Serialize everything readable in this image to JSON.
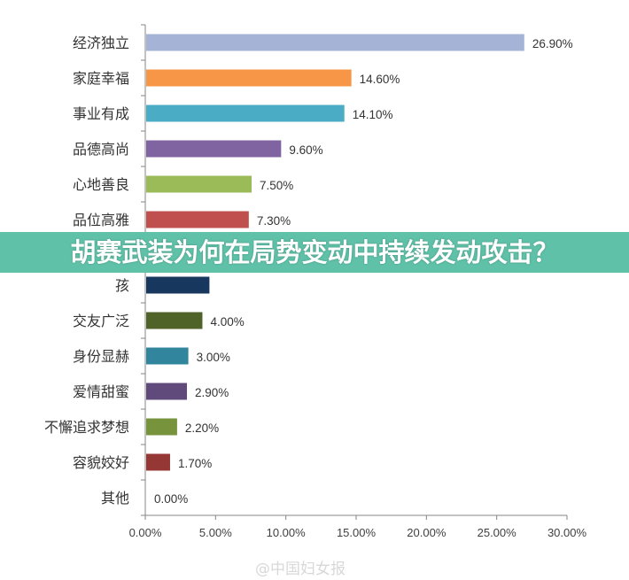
{
  "banner": {
    "title": "胡赛武装为何在局势变动中持续发动攻击？"
  },
  "watermark": "@中国妇女报",
  "chart_data": {
    "type": "bar",
    "orientation": "horizontal",
    "title": "",
    "xlabel": "",
    "ylabel": "",
    "xlim": [
      0,
      30
    ],
    "xticks": [
      "0.00%",
      "5.00%",
      "10.00%",
      "15.00%",
      "20.00%",
      "25.00%",
      "30.00%"
    ],
    "grid": false,
    "categories": [
      "经济独立",
      "家庭幸福",
      "事业有成",
      "品德高尚",
      "心地善良",
      "品位高雅",
      "孩",
      "交友广泛",
      "身份显赫",
      "爱情甜蜜",
      "不懈追求梦想",
      "容貌姣好",
      "其他"
    ],
    "values": [
      26.9,
      14.6,
      14.1,
      9.6,
      7.5,
      7.3,
      4.5,
      4.0,
      3.0,
      2.9,
      2.2,
      1.7,
      0.0
    ],
    "labels": [
      "26.90%",
      "14.60%",
      "14.10%",
      "9.60%",
      "7.50%",
      "7.30%",
      "",
      "4.00%",
      "3.00%",
      "2.90%",
      "2.20%",
      "1.70%",
      "0.00%"
    ],
    "colors": [
      "#a5b4d6",
      "#f79646",
      "#4bacc6",
      "#8064a2",
      "#9bbb59",
      "#c0504d",
      "#17375e",
      "#4f6228",
      "#31859c",
      "#604a7b",
      "#77933c",
      "#953735",
      "#4f81bd"
    ]
  }
}
